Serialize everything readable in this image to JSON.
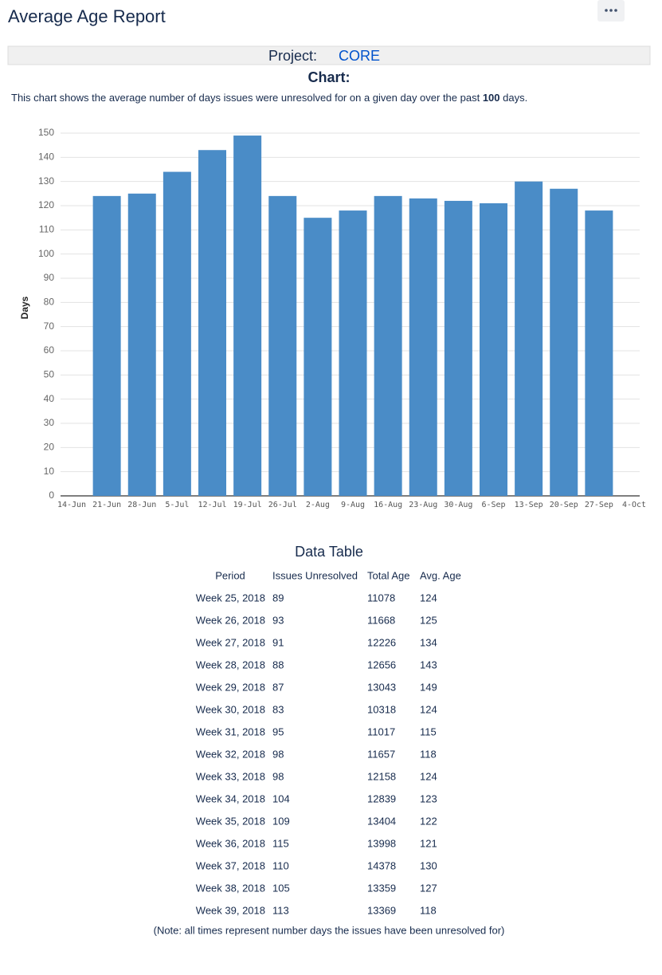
{
  "header": {
    "title": "Average Age Report"
  },
  "project": {
    "label": "Project:",
    "name": "CORE"
  },
  "chart_heading": "Chart:",
  "description": [
    "This chart shows the average number of days issues were unresolved for on a given day over the past ",
    "100",
    " days."
  ],
  "chart_data": {
    "type": "bar",
    "y_label": "Days",
    "categories": [
      "14-Jun",
      "21-Jun",
      "28-Jun",
      "5-Jul",
      "12-Jul",
      "19-Jul",
      "26-Jul",
      "2-Aug",
      "9-Aug",
      "16-Aug",
      "23-Aug",
      "30-Aug",
      "6-Sep",
      "13-Sep",
      "20-Sep",
      "27-Sep",
      "4-Oct"
    ],
    "values": [
      null,
      124,
      125,
      134,
      143,
      149,
      124,
      115,
      118,
      124,
      123,
      122,
      121,
      130,
      127,
      118,
      null
    ],
    "color": "#4a8cc7",
    "ylim": [
      0,
      150
    ],
    "yticks": [
      0,
      10,
      20,
      30,
      40,
      50,
      60,
      70,
      80,
      90,
      100,
      110,
      120,
      130,
      140,
      150
    ],
    "grid": true
  },
  "table": {
    "title": "Data Table",
    "columns": [
      "Period",
      "Issues Unresolved",
      "Total Age",
      "Avg. Age"
    ],
    "rows": [
      [
        "Week 25, 2018",
        89,
        11078,
        124
      ],
      [
        "Week 26, 2018",
        93,
        11668,
        125
      ],
      [
        "Week 27, 2018",
        91,
        12226,
        134
      ],
      [
        "Week 28, 2018",
        88,
        12656,
        143
      ],
      [
        "Week 29, 2018",
        87,
        13043,
        149
      ],
      [
        "Week 30, 2018",
        83,
        10318,
        124
      ],
      [
        "Week 31, 2018",
        95,
        11017,
        115
      ],
      [
        "Week 32, 2018",
        98,
        11657,
        118
      ],
      [
        "Week 33, 2018",
        98,
        12158,
        124
      ],
      [
        "Week 34, 2018",
        104,
        12839,
        123
      ],
      [
        "Week 35, 2018",
        109,
        13404,
        122
      ],
      [
        "Week 36, 2018",
        115,
        13998,
        121
      ],
      [
        "Week 37, 2018",
        110,
        14378,
        130
      ],
      [
        "Week 38, 2018",
        105,
        13359,
        127
      ],
      [
        "Week 39, 2018",
        113,
        13369,
        118
      ]
    ],
    "note": "(Note: all times represent number days the issues have been unresolved for)"
  }
}
